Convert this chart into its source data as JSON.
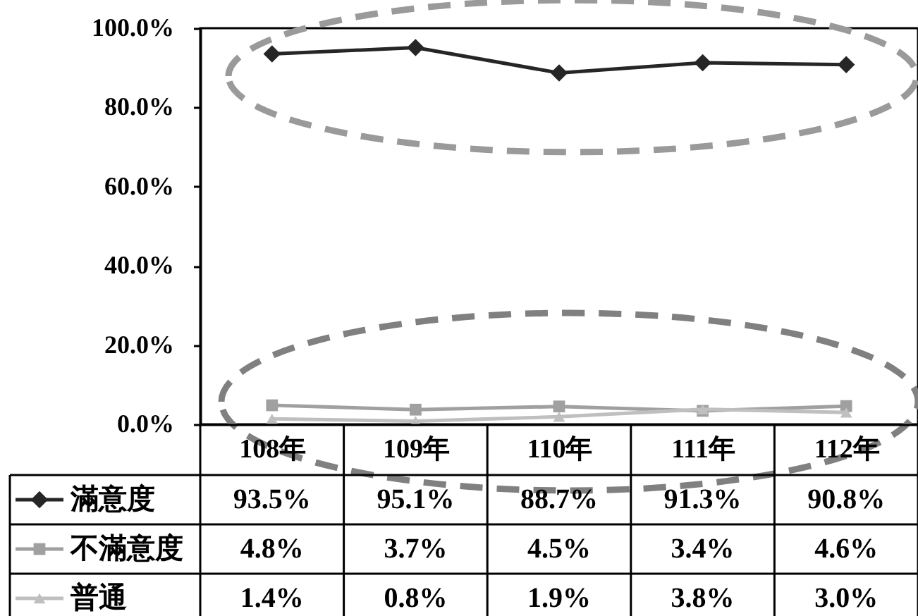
{
  "chart_data": {
    "type": "line",
    "categories": [
      "108年",
      "109年",
      "110年",
      "111年",
      "112年"
    ],
    "series": [
      {
        "name": "滿意度",
        "color": "#262626",
        "marker": "diamond",
        "values": [
          93.5,
          95.1,
          88.7,
          91.3,
          90.8
        ],
        "value_labels": [
          "93.5%",
          "95.1%",
          "88.7%",
          "91.3%",
          "90.8%"
        ]
      },
      {
        "name": "不滿意度",
        "color": "#a0a0a0",
        "marker": "square",
        "values": [
          4.8,
          3.7,
          4.5,
          3.4,
          4.6
        ],
        "value_labels": [
          "4.8%",
          "3.7%",
          "4.5%",
          "3.4%",
          "4.6%"
        ]
      },
      {
        "name": "普通",
        "color": "#bfbfbf",
        "marker": "triangle",
        "values": [
          1.4,
          0.8,
          1.9,
          3.8,
          3.0
        ],
        "value_labels": [
          "1.4%",
          "0.8%",
          "1.9%",
          "3.8%",
          "3.0%"
        ]
      }
    ],
    "ylim": [
      0,
      100
    ],
    "yticks": [
      {
        "value": 0,
        "label": "0.0%"
      },
      {
        "value": 20,
        "label": "20.0%"
      },
      {
        "value": 40,
        "label": "40.0%"
      },
      {
        "value": 60,
        "label": "60.0%"
      },
      {
        "value": 80,
        "label": "80.0%"
      },
      {
        "value": 100,
        "label": "100.0%"
      }
    ],
    "legend": "bottom left"
  }
}
